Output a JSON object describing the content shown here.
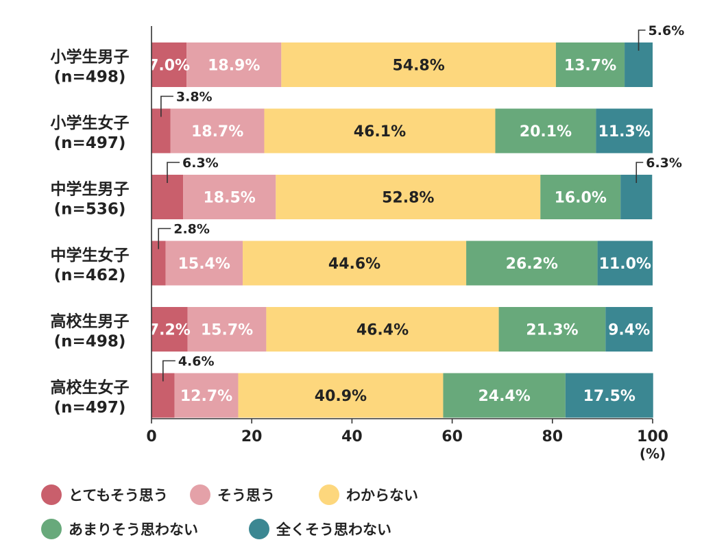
{
  "chart_data": {
    "type": "bar",
    "orientation": "horizontal",
    "stacked": true,
    "categories": [
      [
        "小学生男子",
        "(n=498)"
      ],
      [
        "小学生女子",
        "(n=497)"
      ],
      [
        "中学生男子",
        "(n=536)"
      ],
      [
        "中学生女子",
        "(n=462)"
      ],
      [
        "高校生男子",
        "(n=498)"
      ],
      [
        "高校生女子",
        "(n=497)"
      ]
    ],
    "series": [
      {
        "name": "とてもそう思う",
        "color": "#c95f6c",
        "values": [
          7.0,
          3.8,
          6.3,
          2.8,
          7.2,
          4.6
        ]
      },
      {
        "name": "そう思う",
        "color": "#e4a1a8",
        "values": [
          18.9,
          18.7,
          18.5,
          15.4,
          15.7,
          12.7
        ]
      },
      {
        "name": "わからない",
        "color": "#fdd77d",
        "values": [
          54.8,
          46.1,
          52.8,
          44.6,
          46.4,
          40.9
        ]
      },
      {
        "name": "あまりそう思わない",
        "color": "#68a97b",
        "values": [
          13.7,
          20.1,
          16.0,
          26.2,
          21.3,
          24.4
        ]
      },
      {
        "name": "全くそう思わない",
        "color": "#3b8792",
        "values": [
          5.6,
          11.3,
          6.3,
          11.0,
          9.4,
          17.5
        ]
      }
    ],
    "value_labels": [
      [
        "7.0%",
        "18.9%",
        "54.8%",
        "13.7%",
        "5.6%"
      ],
      [
        "3.8%",
        "18.7%",
        "46.1%",
        "20.1%",
        "11.3%"
      ],
      [
        "6.3%",
        "18.5%",
        "52.8%",
        "16.0%",
        "6.3%"
      ],
      [
        "2.8%",
        "15.4%",
        "44.6%",
        "26.2%",
        "11.0%"
      ],
      [
        "7.2%",
        "15.7%",
        "46.4%",
        "21.3%",
        "9.4%"
      ],
      [
        "4.6%",
        "12.7%",
        "40.9%",
        "24.4%",
        "17.5%"
      ]
    ],
    "xlim": [
      0,
      100
    ],
    "xticks": [
      "0",
      "20",
      "40",
      "60",
      "80",
      "100"
    ],
    "x_unit": "(%)",
    "legend_position": "bottom",
    "grid": false
  }
}
